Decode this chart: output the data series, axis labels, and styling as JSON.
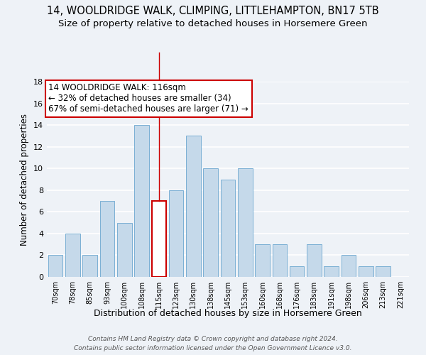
{
  "title": "14, WOOLDRIDGE WALK, CLIMPING, LITTLEHAMPTON, BN17 5TB",
  "subtitle": "Size of property relative to detached houses in Horsemere Green",
  "xlabel": "Distribution of detached houses by size in Horsemere Green",
  "ylabel": "Number of detached properties",
  "footer_line1": "Contains HM Land Registry data © Crown copyright and database right 2024.",
  "footer_line2": "Contains public sector information licensed under the Open Government Licence v3.0.",
  "bin_labels": [
    "70sqm",
    "78sqm",
    "85sqm",
    "93sqm",
    "100sqm",
    "108sqm",
    "115sqm",
    "123sqm",
    "130sqm",
    "138sqm",
    "145sqm",
    "153sqm",
    "160sqm",
    "168sqm",
    "176sqm",
    "183sqm",
    "191sqm",
    "198sqm",
    "206sqm",
    "213sqm",
    "221sqm"
  ],
  "values": [
    2,
    4,
    2,
    7,
    5,
    14,
    7,
    8,
    13,
    10,
    9,
    10,
    3,
    3,
    1,
    3,
    1,
    2,
    1,
    1,
    0
  ],
  "bar_color": "#c5d9ea",
  "bar_edge_color": "#7aafd4",
  "highlight_bar_index": 6,
  "highlight_bar_color": "#ffffff",
  "highlight_bar_edge_color": "#cc0000",
  "annotation_box_text_line1": "14 WOOLDRIDGE WALK: 116sqm",
  "annotation_box_text_line2": "← 32% of detached houses are smaller (34)",
  "annotation_box_text_line3": "67% of semi-detached houses are larger (71) →",
  "annotation_box_edge_color": "#cc0000",
  "annotation_box_facecolor": "#ffffff",
  "ylim": [
    0,
    18
  ],
  "yticks": [
    0,
    2,
    4,
    6,
    8,
    10,
    12,
    14,
    16,
    18
  ],
  "background_color": "#eef2f7",
  "grid_color": "#ffffff",
  "title_fontsize": 10.5,
  "subtitle_fontsize": 9.5,
  "xlabel_fontsize": 9,
  "ylabel_fontsize": 8.5,
  "annotation_fontsize": 8.5
}
